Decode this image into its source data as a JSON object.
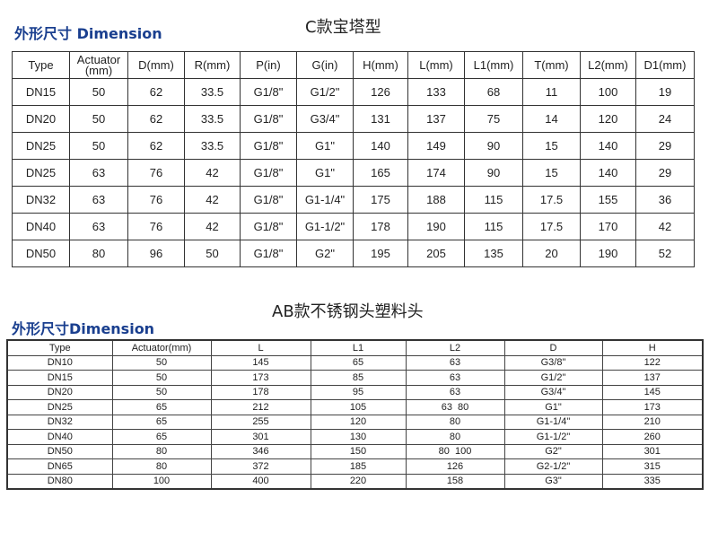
{
  "section1": {
    "heading": "外形尺寸 Dimension",
    "title": "C款宝塔型",
    "headers": [
      "Type",
      "Actuator\n(mm)",
      "D(mm)",
      "R(mm)",
      "P(in)",
      "G(in)",
      "H(mm)",
      "L(mm)",
      "L1(mm)",
      "T(mm)",
      "L2(mm)",
      "D1(mm)"
    ],
    "rows": [
      [
        "DN15",
        "50",
        "62",
        "33.5",
        "G1/8\"",
        "G1/2\"",
        "126",
        "133",
        "68",
        "11",
        "100",
        "19"
      ],
      [
        "DN20",
        "50",
        "62",
        "33.5",
        "G1/8\"",
        "G3/4\"",
        "131",
        "137",
        "75",
        "14",
        "120",
        "24"
      ],
      [
        "DN25",
        "50",
        "62",
        "33.5",
        "G1/8\"",
        "G1\"",
        "140",
        "149",
        "90",
        "15",
        "140",
        "29"
      ],
      [
        "DN25",
        "63",
        "76",
        "42",
        "G1/8\"",
        "G1\"",
        "165",
        "174",
        "90",
        "15",
        "140",
        "29"
      ],
      [
        "DN32",
        "63",
        "76",
        "42",
        "G1/8\"",
        "G1-1/4\"",
        "175",
        "188",
        "115",
        "17.5",
        "155",
        "36"
      ],
      [
        "DN40",
        "63",
        "76",
        "42",
        "G1/8\"",
        "G1-1/2\"",
        "178",
        "190",
        "115",
        "17.5",
        "170",
        "42"
      ],
      [
        "DN50",
        "80",
        "96",
        "50",
        "G1/8\"",
        "G2\"",
        "195",
        "205",
        "135",
        "20",
        "190",
        "52"
      ]
    ]
  },
  "section2": {
    "heading": "外形尺寸Dimension",
    "title": "AB款不锈钢头塑料头",
    "headers": [
      "Type",
      "Actuator(mm)",
      "L",
      "L1",
      "L2",
      "D",
      "H"
    ],
    "rows": [
      [
        "DN10",
        "50",
        "145",
        "65",
        "63",
        "G3/8\"",
        "122"
      ],
      [
        "DN15",
        "50",
        "173",
        "85",
        "63",
        "G1/2\"",
        "137"
      ],
      [
        "DN20",
        "50",
        "178",
        "95",
        "63",
        "G3/4\"",
        "145"
      ],
      [
        "DN25",
        "65",
        "212",
        "105",
        "63  80",
        "G1\"",
        "173"
      ],
      [
        "DN32",
        "65",
        "255",
        "120",
        "80",
        "G1-1/4\"",
        "210"
      ],
      [
        "DN40",
        "65",
        "301",
        "130",
        "80",
        "G1-1/2\"",
        "260"
      ],
      [
        "DN50",
        "80",
        "346",
        "150",
        "80  100",
        "G2\"",
        "301"
      ],
      [
        "DN65",
        "80",
        "372",
        "185",
        "126",
        "G2-1/2\"",
        "315"
      ],
      [
        "DN80",
        "100",
        "400",
        "220",
        "158",
        "G3\"",
        "335"
      ]
    ]
  },
  "colors": {
    "heading": "#1a3f8f",
    "border": "#333333"
  }
}
